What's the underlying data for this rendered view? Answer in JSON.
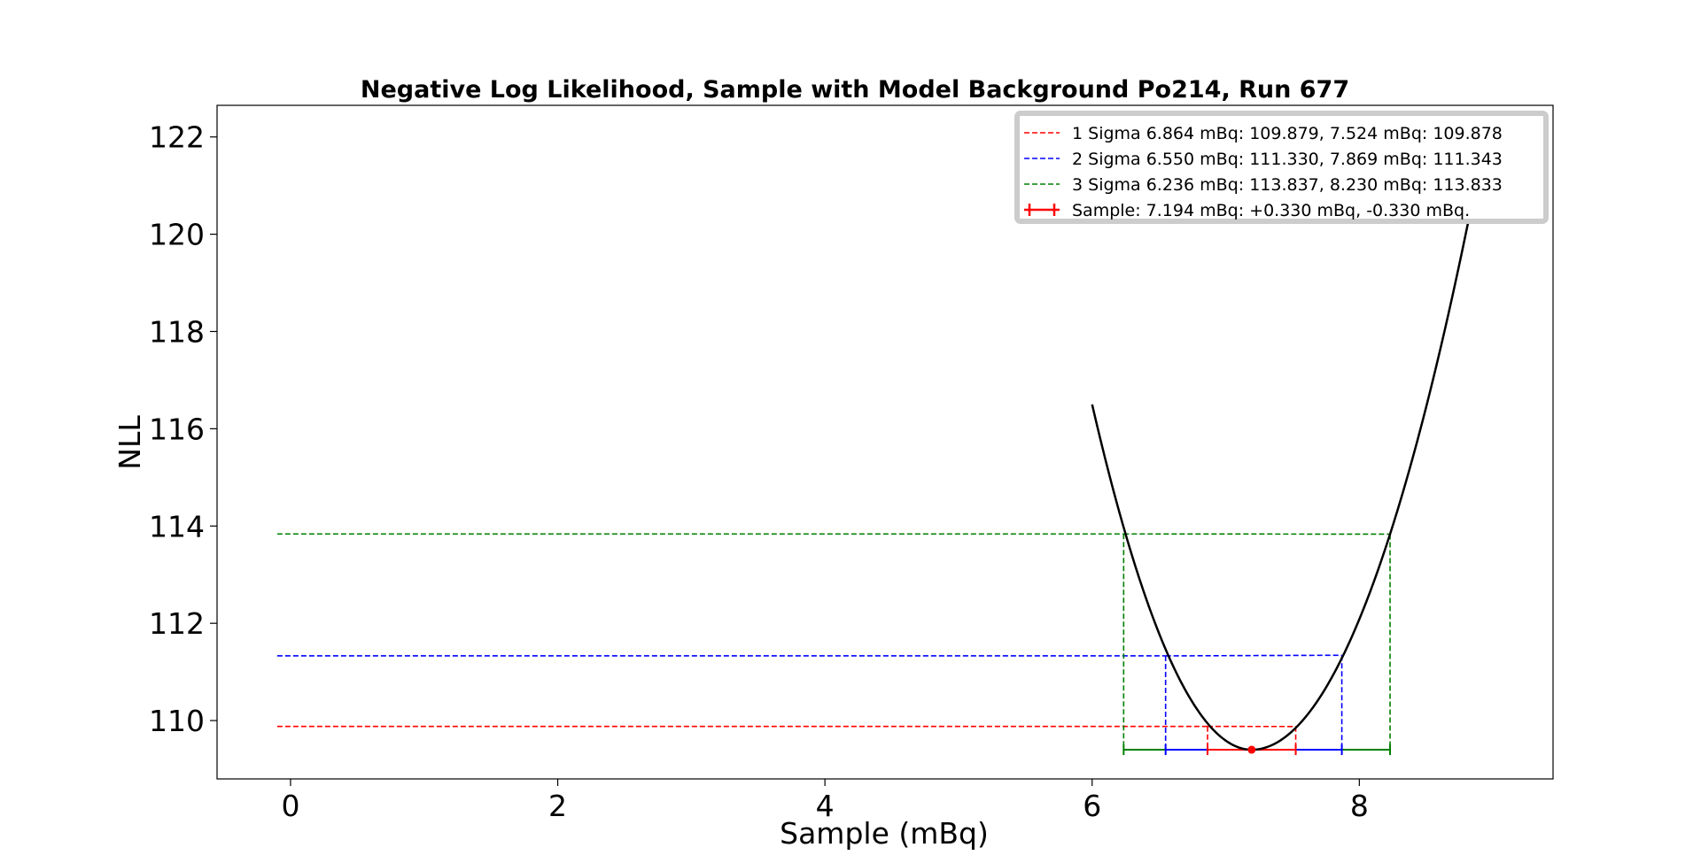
{
  "chart_data": {
    "type": "line",
    "title": "Negative Log Likelihood, Sample with Model Background Po214, Run 677",
    "xlabel": "Sample (mBq)",
    "ylabel": "NLL",
    "xlim": [
      -0.55,
      9.45
    ],
    "ylim": [
      108.8,
      122.65
    ],
    "x_ticks": [
      0,
      2,
      4,
      6,
      8
    ],
    "y_ticks": [
      110,
      112,
      114,
      116,
      118,
      120,
      122
    ],
    "grid": false,
    "legend_position": "top-right",
    "nll_curve": {
      "color": "#000000",
      "x_start": 6.0,
      "x_end": 8.93,
      "minimum_x": 7.194,
      "minimum_y": 109.4,
      "start_y": 116.5
    },
    "series": [
      {
        "name": "1 Sigma",
        "legend_label": "1 Sigma    6.864 mBq: 109.879, 7.524 mBq: 109.878",
        "color": "#ff0000",
        "style": "dashed",
        "x_low": 6.864,
        "y_low": 109.879,
        "x_high": 7.524,
        "y_high": 109.878,
        "x_from": -0.1
      },
      {
        "name": "2 Sigma",
        "legend_label": "2 Sigma    6.550 mBq: 111.330, 7.869 mBq: 111.343",
        "color": "#0000ff",
        "style": "dashed",
        "x_low": 6.55,
        "y_low": 111.33,
        "x_high": 7.869,
        "y_high": 111.343,
        "x_from": -0.1
      },
      {
        "name": "3 Sigma",
        "legend_label": "3 Sigma    6.236 mBq: 113.837, 8.230 mBq: 113.833",
        "color": "#008000",
        "style": "dashed",
        "x_low": 6.236,
        "y_low": 113.837,
        "x_high": 8.23,
        "y_high": 113.833,
        "x_from": -0.1
      }
    ],
    "sample": {
      "legend_label": "Sample: 7.194 mBq: +0.330 mBq, -0.330 mBq.",
      "color": "#ff0000",
      "x": 7.194,
      "y": 109.4,
      "plus": 0.33,
      "minus": 0.33
    }
  }
}
